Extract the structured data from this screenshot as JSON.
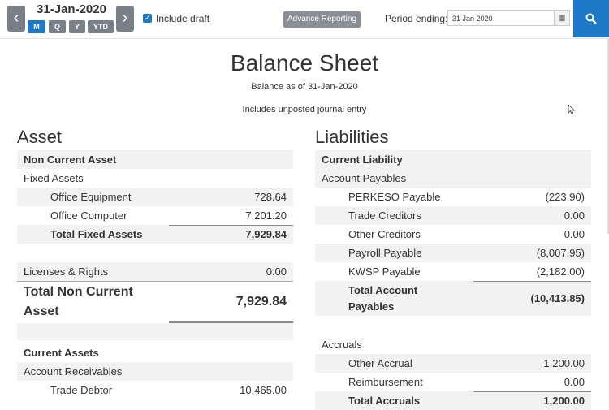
{
  "header": {
    "date": "31-Jan-2020",
    "prev_label": "‹",
    "next_label": "›",
    "periods": [
      "M",
      "Q",
      "Y",
      "YTD"
    ],
    "include_draft": "Include draft",
    "advance_reporting": "Advance Reporting",
    "period_ending_label": "Period ending:",
    "period_ending_value": "31 Jan 2020",
    "search_icon": "search-icon",
    "calendar_icon": "calendar-icon"
  },
  "report": {
    "title": "Balance Sheet",
    "subtitle": "Balance as of 31-Jan-2020",
    "note": "Includes unposted journal entry"
  },
  "asset": {
    "heading": "Asset",
    "non_current": "Non Current Asset",
    "fixed_assets": "Fixed Assets",
    "office_equipment": {
      "label": "Office Equipment",
      "value": "728.64"
    },
    "office_computer": {
      "label": "Office Computer",
      "value": "7,201.20"
    },
    "total_fixed": {
      "label": "Total Fixed Assets",
      "value": "7,929.84"
    },
    "licenses": {
      "label": "Licenses & Rights",
      "value": "0.00"
    },
    "total_non_current": {
      "label": "Total Non Current Asset",
      "value": "7,929.84"
    },
    "current_assets": "Current Assets",
    "account_receivables": "Account Receivables",
    "trade_debtor": {
      "label": "Trade Debtor",
      "value": "10,465.00"
    }
  },
  "liabilities": {
    "heading": "Liabilities",
    "current": "Current Liability",
    "account_payables": "Account Payables",
    "perkeso": {
      "label": "PERKESO Payable",
      "value": "(223.90)"
    },
    "trade_creditors": {
      "label": "Trade Creditors",
      "value": "0.00"
    },
    "other_creditors": {
      "label": "Other Creditors",
      "value": "0.00"
    },
    "payroll": {
      "label": "Payroll Payable",
      "value": "(8,007.95)"
    },
    "kwsp": {
      "label": "KWSP Payable",
      "value": "(2,182.00)"
    },
    "total_payables": {
      "label": "Total Account Payables",
      "value": "(10,413.85)"
    },
    "accruals": "Accruals",
    "other_accrual": {
      "label": "Other Accrual",
      "value": "1,200.00"
    },
    "reimbursement": {
      "label": "Reimbursement",
      "value": "0.00"
    },
    "total_accruals": {
      "label": "Total Accruals",
      "value": "1,200.00"
    }
  }
}
